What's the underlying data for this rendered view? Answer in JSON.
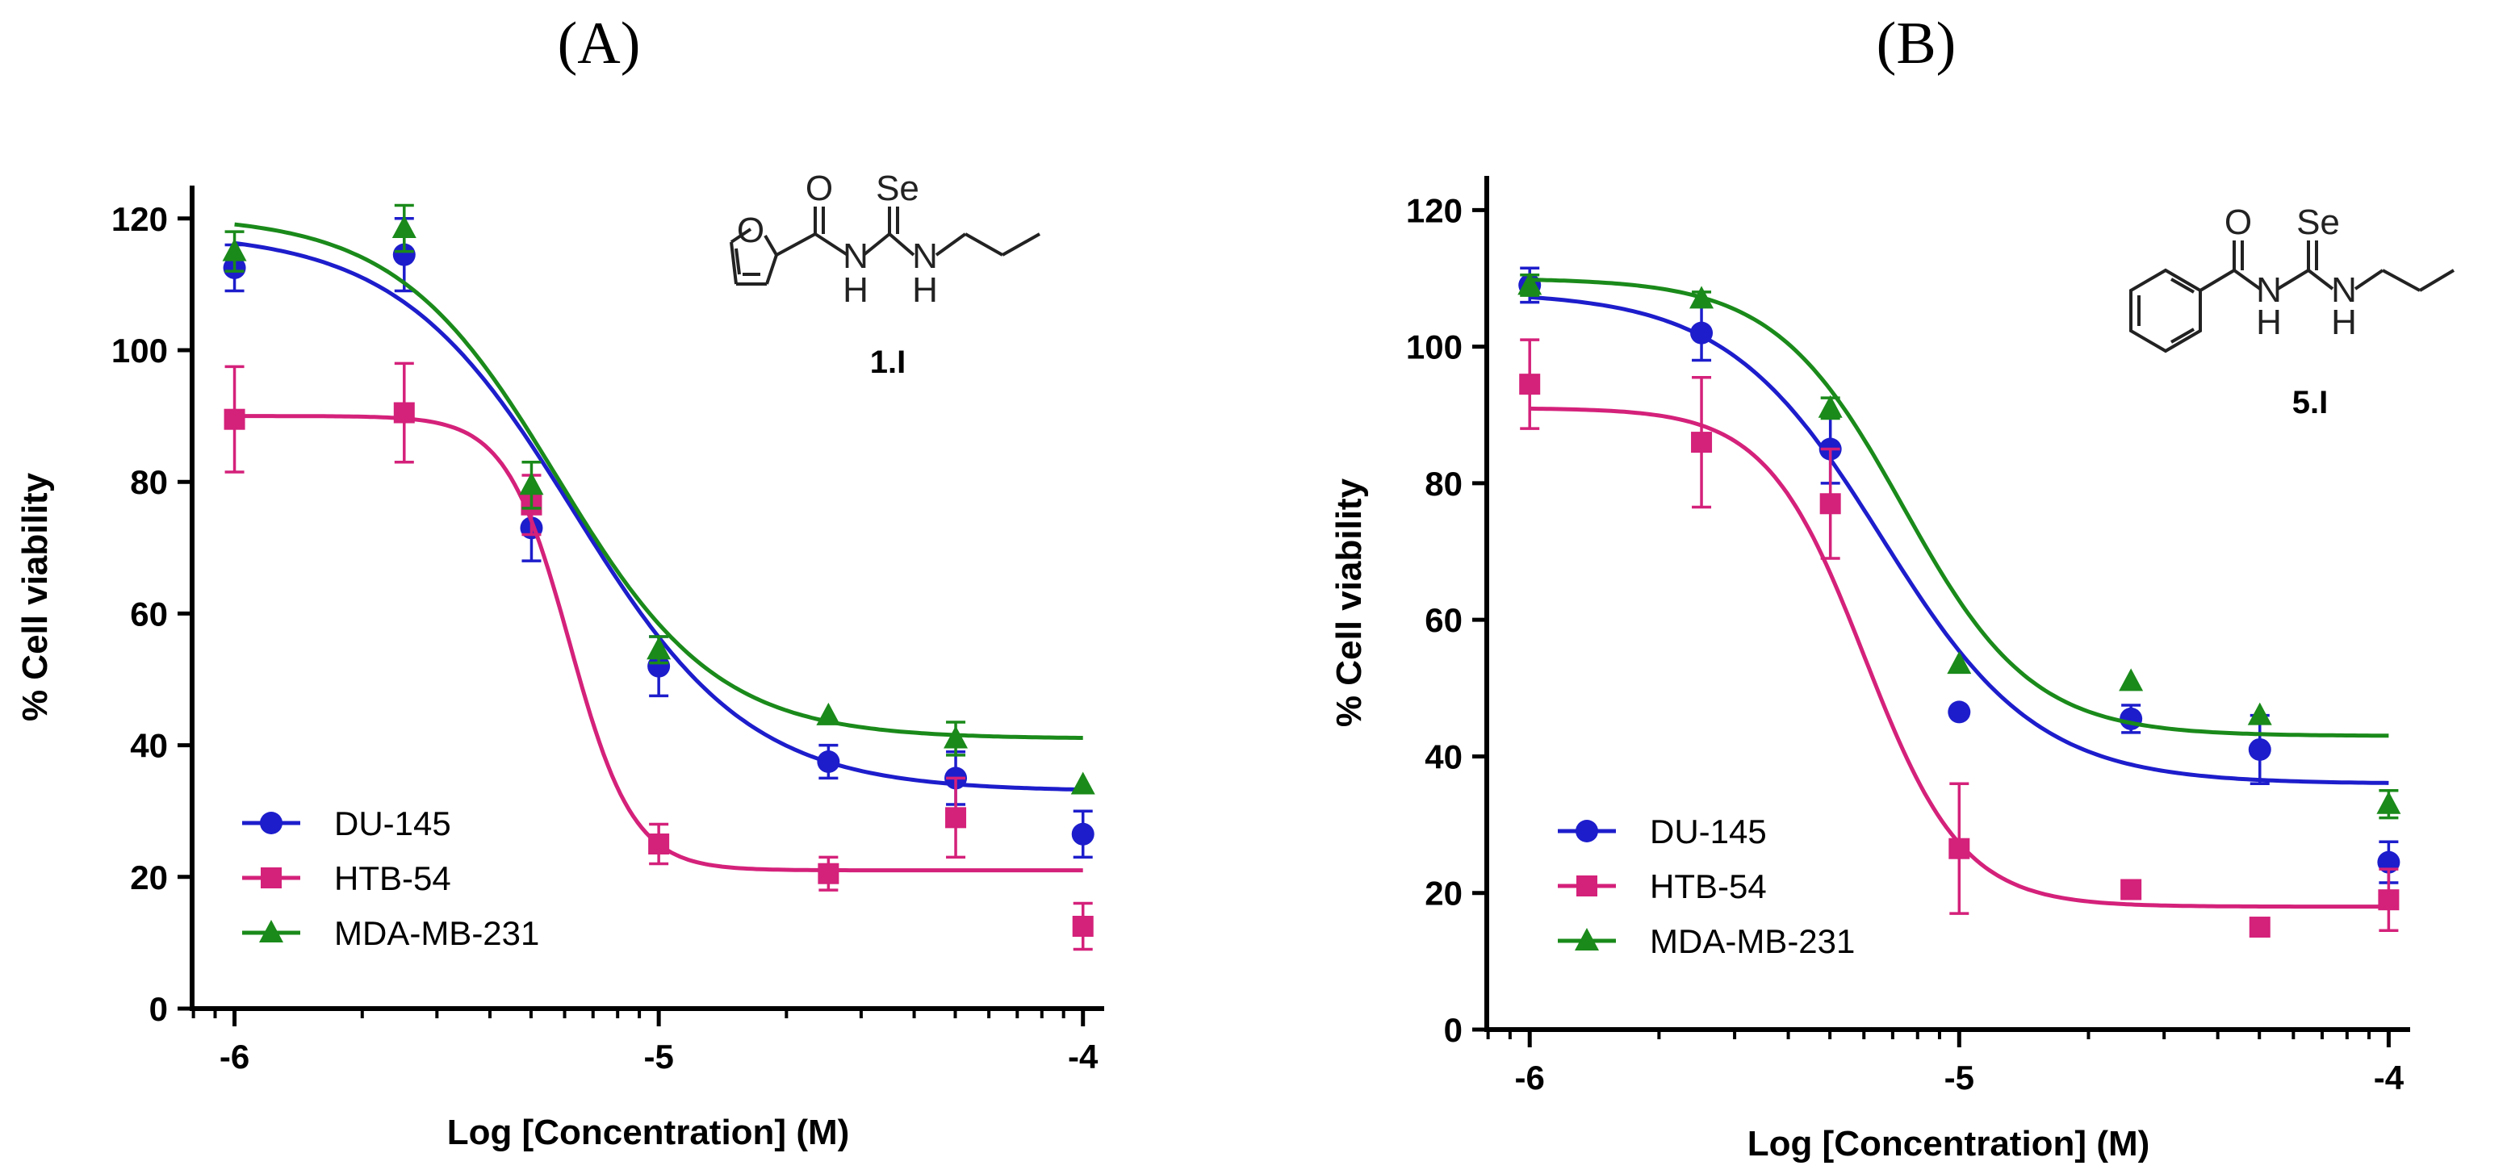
{
  "series_colors": {
    "DU-145": "#1d1dcc",
    "HTB-54": "#d4217a",
    "MDA-MB-231": "#1a8a1a"
  },
  "chart_data": [
    {
      "panel": "(A)",
      "type": "line",
      "xlabel": "Log [Concentration] (M)",
      "ylabel": "% Cell viability",
      "xlim": [
        -6.1,
        -3.95
      ],
      "ylim": [
        0,
        125
      ],
      "xticks": [
        -6,
        -5,
        -4
      ],
      "xtick_labels": [
        "-6",
        "-5",
        "-4"
      ],
      "yticks": [
        0,
        20,
        40,
        60,
        80,
        100,
        120
      ],
      "ytick_labels": [
        "0",
        "20",
        "40",
        "60",
        "80",
        "100",
        "120"
      ],
      "compound": {
        "name": "1.I",
        "atoms": [
          "O",
          "O",
          "Se",
          "N",
          "H",
          "N",
          "H"
        ]
      },
      "series": [
        {
          "name": "DU-145",
          "marker": "circle",
          "x": [
            -6,
            -5.6,
            -5.3,
            -5,
            -4.6,
            -4.3,
            -4
          ],
          "y": [
            112.5,
            114.5,
            73,
            52,
            37.5,
            35,
            26.5
          ],
          "err": [
            3.5,
            5.5,
            5,
            4.5,
            2.5,
            4,
            3.5
          ],
          "fit": {
            "bottom": 33,
            "top": 118,
            "logEC50": -5.2,
            "hill": 2.1
          }
        },
        {
          "name": "HTB-54",
          "marker": "square",
          "x": [
            -6,
            -5.6,
            -5.3,
            -5,
            -4.6,
            -4.3,
            -4
          ],
          "y": [
            89.5,
            90.5,
            76.5,
            25,
            20.5,
            29,
            12.5
          ],
          "err": [
            8,
            7.5,
            4.5,
            3,
            2.5,
            6,
            3.5
          ],
          "fit": {
            "bottom": 21,
            "top": 90,
            "logEC50": -5.21,
            "hill": 5.8
          }
        },
        {
          "name": "MDA-MB-231",
          "marker": "triangle",
          "x": [
            -6,
            -5.6,
            -5.3,
            -5,
            -4.6,
            -4.3,
            -4
          ],
          "y": [
            115,
            118.5,
            79.5,
            54.5,
            44.5,
            41,
            34
          ],
          "err": [
            3,
            3.5,
            3.5,
            2,
            0,
            2.5,
            0
          ],
          "fit": {
            "bottom": 41,
            "top": 120.5,
            "logEC50": -5.24,
            "hill": 2.3
          }
        }
      ]
    },
    {
      "panel": "(B)",
      "type": "line",
      "xlabel": "Log [Concentration] (M)",
      "ylabel": "% Cell viability",
      "xlim": [
        -6.1,
        -3.95
      ],
      "ylim": [
        0,
        125
      ],
      "xticks": [
        -6,
        -5,
        -4
      ],
      "xtick_labels": [
        "-6",
        "-5",
        "-4"
      ],
      "yticks": [
        0,
        20,
        40,
        60,
        80,
        100,
        120
      ],
      "ytick_labels": [
        "0",
        "20",
        "40",
        "60",
        "80",
        "100",
        "120"
      ],
      "compound": {
        "name": "5.I",
        "atoms": [
          "O",
          "Se",
          "N",
          "H",
          "N",
          "H"
        ]
      },
      "series": [
        {
          "name": "DU-145",
          "marker": "circle",
          "x": [
            -6,
            -5.6,
            -5.3,
            -5,
            -4.6,
            -4.3,
            -4
          ],
          "y": [
            109,
            102,
            85,
            46.5,
            45.5,
            41,
            24.5
          ],
          "err": [
            2.5,
            4,
            5,
            0,
            2,
            5,
            3
          ],
          "fit": {
            "bottom": 36,
            "top": 108,
            "logEC50": -5.18,
            "hill": 2.4
          }
        },
        {
          "name": "HTB-54",
          "marker": "square",
          "x": [
            -6,
            -5.6,
            -5.3,
            -5,
            -4.6,
            -4.3,
            -4
          ],
          "y": [
            94.5,
            86,
            77,
            26.5,
            20.5,
            15,
            19
          ],
          "err": [
            6.5,
            9.5,
            8,
            9.5,
            0,
            0,
            4.5
          ],
          "fit": {
            "bottom": 18,
            "top": 91,
            "logEC50": -5.22,
            "hill": 3.8
          }
        },
        {
          "name": "MDA-MB-231",
          "marker": "triangle",
          "x": [
            -6,
            -5.6,
            -5.3,
            -5,
            -4.6,
            -4.3,
            -4
          ],
          "y": [
            109,
            107,
            91,
            53.5,
            51,
            46,
            33
          ],
          "err": [
            1.5,
            1,
            1.5,
            0,
            0,
            0,
            2
          ],
          "fit": {
            "bottom": 43,
            "top": 110,
            "logEC50": -5.13,
            "hill": 2.9
          }
        }
      ]
    }
  ]
}
